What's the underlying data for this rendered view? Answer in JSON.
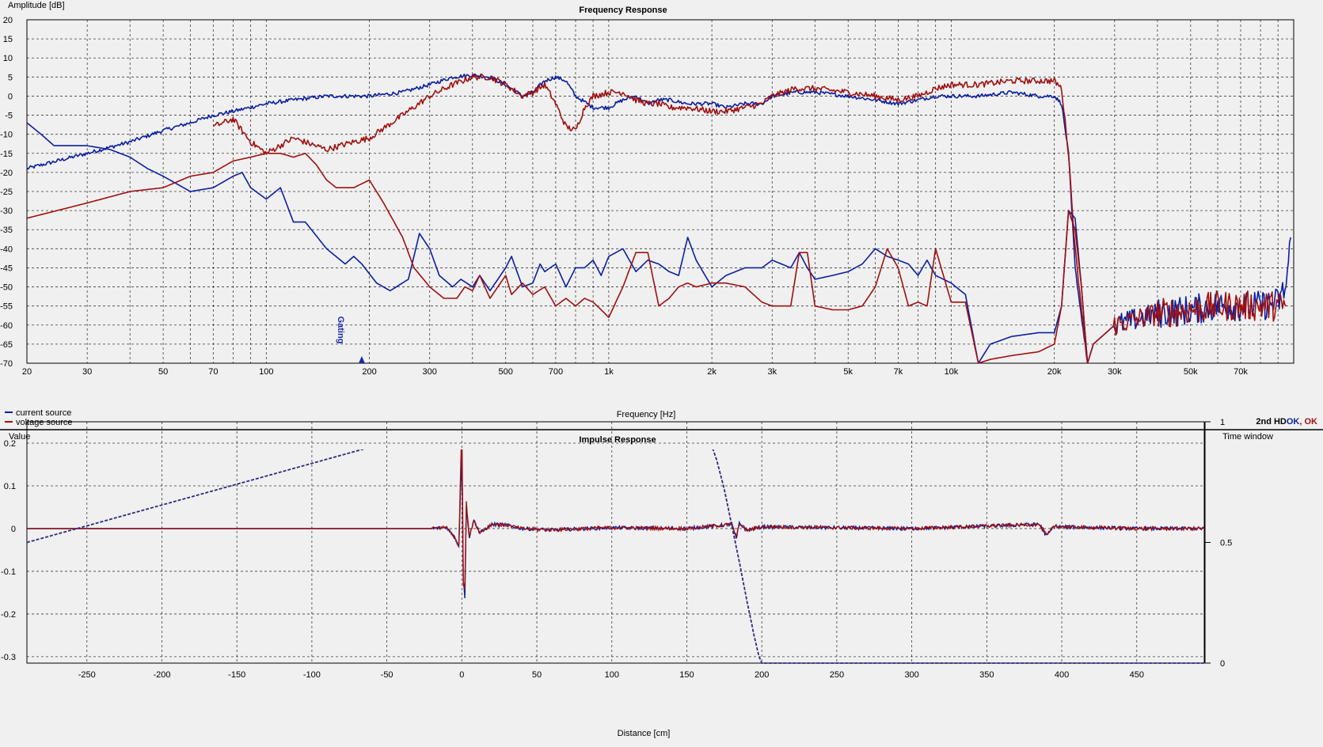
{
  "colors": {
    "blue": "#0b1fa0",
    "red": "#a01010",
    "background": "#f0f0f0"
  },
  "freq_panel": {
    "title": "Frequency Response",
    "ylabel": "Amplitude [dB]",
    "xlabel": "Frequency [Hz]",
    "yticks": [
      "20",
      "15",
      "10",
      "5",
      "0",
      "-5",
      "-10",
      "-15",
      "-20",
      "-25",
      "-30",
      "-35",
      "-40",
      "-45",
      "-50",
      "-55",
      "-60",
      "-65",
      "-70"
    ],
    "xticks": [
      "20",
      "30",
      "50",
      "70",
      "100",
      "200",
      "300",
      "500",
      "700",
      "1k",
      "2k",
      "3k",
      "5k",
      "7k",
      "10k",
      "20k",
      "30k",
      "50k",
      "70k"
    ],
    "gating_label": "Gating",
    "legend": [
      {
        "label": "current source",
        "color": "#0b1fa0"
      },
      {
        "label": "voltage source",
        "color": "#a01010"
      }
    ],
    "status": {
      "prefix": "2nd HD",
      "blue_ok": "OK",
      "sep": ", ",
      "red_ok": "OK"
    }
  },
  "impulse_panel": {
    "title": "Impulse Response",
    "ylabel": "Value",
    "y2label": "Time window",
    "xlabel": "Distance [cm]",
    "yticks": [
      "0.2",
      "0.1",
      "0",
      "-0.1",
      "-0.2",
      "-0.3"
    ],
    "y2ticks": [
      "1",
      "0.5",
      "0"
    ],
    "xticks": [
      "-250",
      "-200",
      "-150",
      "-100",
      "-50",
      "0",
      "50",
      "100",
      "150",
      "200",
      "250",
      "300",
      "350",
      "400",
      "450"
    ]
  },
  "chart_data": [
    {
      "type": "line",
      "title": "Frequency Response",
      "xlabel": "Frequency [Hz]",
      "ylabel": "Amplitude [dB]",
      "xscale": "log",
      "xlim": [
        20,
        100000
      ],
      "ylim": [
        -70,
        20
      ],
      "grid": true,
      "legend_position": "bottom-left",
      "gating_marker_hz": 190,
      "series": [
        {
          "name": "current source",
          "role": "fundamental",
          "color": "#0b1fa0",
          "x": [
            20,
            30,
            40,
            50,
            60,
            70,
            80,
            100,
            120,
            150,
            200,
            250,
            300,
            350,
            400,
            450,
            500,
            560,
            600,
            650,
            700,
            750,
            800,
            900,
            1000,
            1100,
            1200,
            1300,
            1400,
            1500,
            1700,
            2000,
            2200,
            2500,
            2800,
            3000,
            3500,
            4000,
            5000,
            6000,
            7000,
            8000,
            9000,
            10000,
            12000,
            15000,
            18000,
            20000,
            21000,
            22000,
            23000,
            25000
          ],
          "y": [
            -19,
            -15,
            -12,
            -9,
            -7,
            -5,
            -4,
            -2,
            -1,
            0,
            0,
            1,
            3,
            5,
            5.5,
            5,
            3,
            0,
            1,
            4,
            5,
            4,
            0,
            -3,
            -3,
            -1,
            0,
            -2,
            -1,
            -1,
            -2,
            -2,
            -3,
            -2,
            -2,
            0,
            1,
            1,
            0,
            -1,
            -2,
            -1,
            0,
            0,
            0,
            1,
            0,
            0,
            -2,
            -15,
            -45,
            -70
          ],
          "noise": 0.5
        },
        {
          "name": "voltage source",
          "role": "fundamental",
          "color": "#a01010",
          "x": [
            70,
            80,
            90,
            100,
            120,
            150,
            180,
            200,
            250,
            300,
            350,
            400,
            450,
            500,
            560,
            600,
            650,
            700,
            750,
            800,
            850,
            900,
            1000,
            1100,
            1200,
            1300,
            1400,
            1500,
            1700,
            2000,
            2200,
            2500,
            2800,
            3000,
            3500,
            4000,
            5000,
            6000,
            7000,
            8000,
            9000,
            10000,
            12000,
            15000,
            18000,
            20000,
            21000,
            22000,
            23000,
            25000
          ],
          "y": [
            -8,
            -6,
            -12,
            -15,
            -11,
            -14,
            -12,
            -11,
            -5,
            0,
            3,
            5,
            5,
            3,
            0,
            1,
            3,
            -2,
            -8,
            -9,
            -3,
            0,
            1,
            1,
            -1,
            -2,
            -2,
            -3,
            -3,
            -4,
            -4,
            -3,
            -2,
            0,
            2,
            2,
            1,
            0,
            -1,
            0,
            2,
            3,
            3,
            4,
            4,
            4,
            2,
            -15,
            -40,
            -70
          ],
          "noise": 0.8
        },
        {
          "name": "current source",
          "role": "2nd harmonic",
          "color": "#0b1fa0",
          "x": [
            20,
            22,
            24,
            30,
            35,
            40,
            45,
            50,
            60,
            70,
            80,
            85,
            90,
            100,
            110,
            120,
            130,
            150,
            170,
            180,
            190,
            210,
            230,
            260,
            280,
            300,
            320,
            350,
            370,
            400,
            420,
            450,
            500,
            520,
            560,
            600,
            630,
            650,
            700,
            750,
            800,
            850,
            900,
            950,
            1000,
            1100,
            1200,
            1300,
            1400,
            1500,
            1600,
            1700,
            1800,
            2000,
            2200,
            2500,
            2800,
            3000,
            3400,
            3600,
            3800,
            4000,
            4500,
            5000,
            5500,
            6000,
            6500,
            7000,
            7500,
            8000,
            8500,
            9000,
            10000,
            11000,
            12000,
            13000,
            15000,
            18000,
            20000,
            21000,
            22000,
            23000,
            24000,
            25000,
            26000,
            30000,
            40000,
            50000,
            60000,
            70000,
            80000,
            90000,
            95000,
            98000
          ],
          "y": [
            -7,
            -10,
            -13,
            -13,
            -14,
            -16,
            -19,
            -21,
            -25,
            -24,
            -21,
            -20,
            -24,
            -27,
            -24,
            -33,
            -33,
            -40,
            -44,
            -42,
            -44,
            -49,
            -51,
            -48,
            -36,
            -40,
            -47,
            -50,
            -48,
            -50,
            -47,
            -51,
            -45,
            -42,
            -50,
            -49,
            -44,
            -46,
            -44,
            -50,
            -45,
            -45,
            -43,
            -47,
            -42,
            -40,
            -46,
            -43,
            -44,
            -46,
            -47,
            -37,
            -43,
            -50,
            -47,
            -45,
            -45,
            -43,
            -45,
            -41,
            -45,
            -48,
            -47,
            -46,
            -44,
            -40,
            -42,
            -43,
            -44,
            -47,
            -43,
            -47,
            -49,
            -52,
            -70,
            -65,
            -63,
            -62,
            -62,
            -55,
            -30,
            -32,
            -50,
            -70,
            -65,
            -60,
            -57,
            -56,
            -55,
            -55,
            -55,
            -54,
            -50,
            -37
          ],
          "noise": [
            0,
            0,
            0,
            0,
            0,
            0,
            0,
            0,
            0,
            0,
            0,
            0,
            0,
            0,
            0,
            0,
            0,
            0,
            0,
            0,
            0,
            0,
            0,
            0,
            0,
            0,
            0,
            0,
            0,
            0,
            0,
            0,
            0,
            0,
            0,
            0,
            0,
            0,
            0,
            0,
            0,
            0,
            0,
            0,
            0,
            0,
            0,
            0,
            0,
            0,
            0,
            0,
            0,
            0,
            0,
            0,
            0,
            0,
            0,
            0,
            0,
            0,
            0,
            0,
            0,
            0,
            0,
            0,
            0,
            0,
            0,
            0,
            0,
            0,
            0,
            0,
            0,
            0,
            0,
            0,
            0,
            0,
            0,
            0,
            0,
            3,
            4,
            4,
            4,
            4,
            4,
            4,
            4,
            0
          ]
        },
        {
          "name": "voltage source",
          "role": "2nd harmonic",
          "color": "#a01010",
          "x": [
            20,
            30,
            40,
            50,
            60,
            70,
            80,
            90,
            100,
            110,
            120,
            130,
            140,
            150,
            160,
            180,
            200,
            220,
            250,
            270,
            300,
            330,
            360,
            380,
            400,
            420,
            450,
            500,
            520,
            560,
            600,
            650,
            700,
            750,
            800,
            850,
            900,
            950,
            1000,
            1100,
            1200,
            1300,
            1400,
            1500,
            1600,
            1700,
            1800,
            2000,
            2200,
            2500,
            2800,
            3000,
            3400,
            3600,
            3800,
            4000,
            4500,
            5000,
            5500,
            6000,
            6500,
            7000,
            7500,
            8000,
            8500,
            9000,
            10000,
            11000,
            12000,
            13000,
            15000,
            18000,
            20000,
            21000,
            22000,
            23000,
            24000,
            25000,
            26000,
            30000,
            40000,
            50000,
            60000,
            70000,
            80000,
            90000,
            95000
          ],
          "y": [
            -32,
            -28,
            -25,
            -24,
            -21,
            -20,
            -17,
            -16,
            -15,
            -15,
            -16,
            -15,
            -18,
            -22,
            -24,
            -24,
            -22,
            -28,
            -37,
            -45,
            -50,
            -53,
            -53,
            -50,
            -51,
            -47,
            -53,
            -47,
            -52,
            -49,
            -52,
            -50,
            -55,
            -53,
            -55,
            -53,
            -54,
            -56,
            -58,
            -50,
            -41,
            -41,
            -55,
            -53,
            -50,
            -49,
            -50,
            -49,
            -49,
            -50,
            -54,
            -55,
            -55,
            -41,
            -41,
            -55,
            -56,
            -56,
            -55,
            -50,
            -40,
            -45,
            -55,
            -54,
            -55,
            -40,
            -54,
            -54,
            -70,
            -69,
            -68,
            -67,
            -65,
            -55,
            -30,
            -35,
            -50,
            -70,
            -65,
            -60,
            -57,
            -56,
            -55,
            -55,
            -55,
            -55,
            -55
          ],
          "noise": [
            0,
            0,
            0,
            0,
            0,
            0,
            0,
            0,
            0,
            0,
            0,
            0,
            0,
            0,
            0,
            0,
            0,
            0,
            0,
            0,
            0,
            0,
            0,
            0,
            0,
            0,
            0,
            0,
            0,
            0,
            0,
            0,
            0,
            0,
            0,
            0,
            0,
            0,
            0,
            0,
            0,
            0,
            0,
            0,
            0,
            0,
            0,
            0,
            0,
            0,
            0,
            0,
            0,
            0,
            0,
            0,
            0,
            0,
            0,
            0,
            0,
            0,
            0,
            0,
            0,
            0,
            0,
            0,
            0,
            0,
            0,
            0,
            0,
            0,
            0,
            0,
            0,
            0,
            0,
            3,
            4,
            4,
            4,
            4,
            4,
            4,
            4
          ]
        }
      ]
    },
    {
      "type": "line",
      "title": "Impulse Response",
      "xlabel": "Distance [cm]",
      "ylabel": "Value",
      "y2label": "Time window",
      "xlim": [
        -290,
        495
      ],
      "ylim": [
        -0.315,
        0.25
      ],
      "y2lim": [
        0,
        1
      ],
      "grid": true,
      "series": [
        {
          "name": "current source",
          "color": "#0b1fa0",
          "x": [
            -290,
            -20,
            -10,
            -5,
            -2,
            0,
            1,
            2,
            3,
            5,
            8,
            12,
            20,
            30,
            40,
            60,
            100,
            150,
            180,
            183,
            185,
            190,
            200,
            300,
            385,
            390,
            395,
            400,
            450,
            495
          ],
          "y": [
            0,
            0,
            0.003,
            -0.02,
            -0.04,
            0.18,
            -0.12,
            -0.16,
            0.05,
            -0.02,
            0.02,
            -0.01,
            0.01,
            0.008,
            0,
            -0.003,
            0.002,
            0,
            0.01,
            -0.025,
            0.012,
            -0.004,
            0.004,
            0,
            0.01,
            -0.018,
            0.006,
            0.004,
            0,
            0
          ],
          "noise": 0.004
        },
        {
          "name": "voltage source",
          "color": "#a01010",
          "x": [
            -290,
            -20,
            -10,
            -5,
            -2,
            0,
            1,
            2,
            3,
            5,
            8,
            12,
            20,
            30,
            40,
            60,
            100,
            150,
            180,
            183,
            185,
            190,
            200,
            300,
            385,
            390,
            395,
            400,
            450,
            495
          ],
          "y": [
            0,
            0,
            0.003,
            -0.02,
            -0.04,
            0.25,
            -0.13,
            -0.14,
            0.06,
            -0.02,
            0.02,
            -0.01,
            0.01,
            0.008,
            0,
            -0.003,
            0.002,
            0,
            0.01,
            -0.02,
            0.012,
            -0.004,
            0.004,
            0,
            0.01,
            -0.016,
            0.006,
            0.004,
            0,
            0
          ],
          "noise": 0.004
        },
        {
          "name": "time window",
          "axis": "right",
          "color": "#2a2a80",
          "style": "dashed",
          "x": [
            -290,
            0,
            155,
            160,
            165,
            170,
            175,
            180,
            185,
            190,
            195,
            198,
            200,
            495
          ],
          "y": [
            0.5,
            1,
            1,
            0.98,
            0.93,
            0.84,
            0.72,
            0.57,
            0.42,
            0.26,
            0.11,
            0.03,
            0,
            0
          ]
        }
      ]
    }
  ]
}
